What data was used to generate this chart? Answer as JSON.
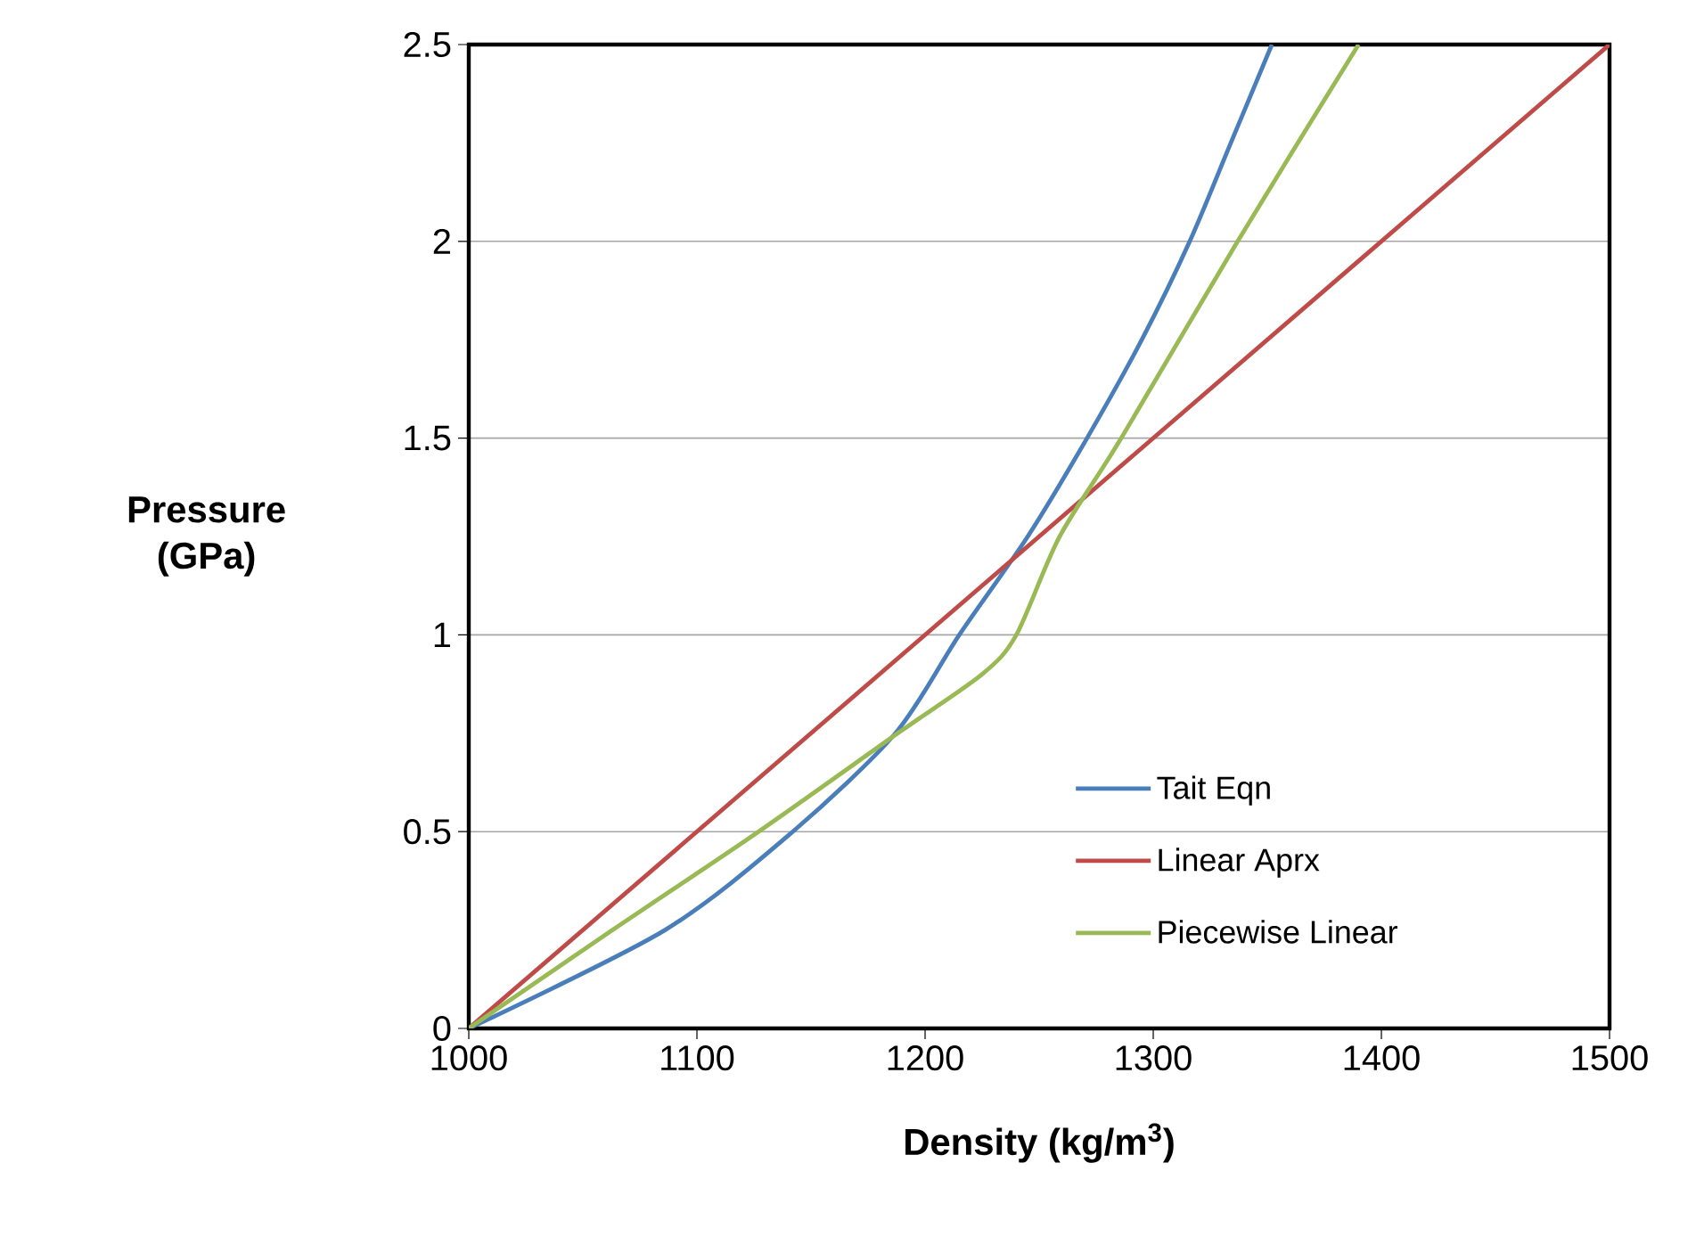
{
  "chart_data": {
    "type": "line",
    "xlabel": "Density (kg/m$^{3}$)",
    "ylabel": "Pressure (GPa)",
    "xlim": [
      1000,
      1500
    ],
    "ylim": [
      0,
      2.5
    ],
    "xticks": [
      1000,
      1100,
      1200,
      1300,
      1400,
      1500
    ],
    "yticks": [
      0,
      0.5,
      1,
      1.5,
      2,
      2.5
    ],
    "grid": "y",
    "legend": "right",
    "line_style": "solid",
    "series": [
      {
        "name": "Tait Eqn",
        "color": "#4a7ebb",
        "x": [
          1000,
          1086,
          1142,
          1187,
          1215,
          1245,
          1271,
          1295,
          1316,
          1334,
          1352
        ],
        "values": [
          0,
          0.25,
          0.5,
          0.75,
          1.0,
          1.25,
          1.5,
          1.75,
          2.0,
          2.25,
          2.5
        ]
      },
      {
        "name": "Linear Aprx",
        "color": "#be4b48",
        "x": [
          1000,
          1500
        ],
        "values": [
          0,
          2.5
        ]
      },
      {
        "name": "Piecewise Linear",
        "color": "#98b954",
        "x": [
          1000,
          1063,
          1127,
          1188,
          1225,
          1240,
          1259,
          1286,
          1337,
          1390
        ],
        "values": [
          0,
          0.25,
          0.5,
          0.75,
          0.9,
          1.0,
          1.25,
          1.5,
          2.0,
          2.5
        ]
      }
    ]
  }
}
